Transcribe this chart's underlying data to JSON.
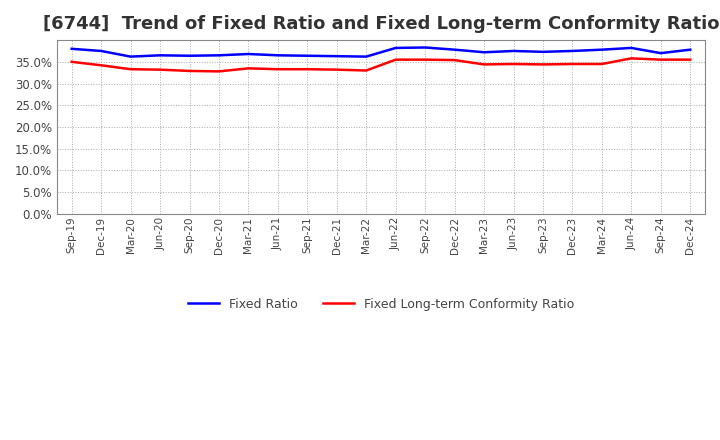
{
  "title": "[6744]  Trend of Fixed Ratio and Fixed Long-term Conformity Ratio",
  "x_labels": [
    "Sep-19",
    "Dec-19",
    "Mar-20",
    "Jun-20",
    "Sep-20",
    "Dec-20",
    "Mar-21",
    "Jun-21",
    "Sep-21",
    "Dec-21",
    "Mar-22",
    "Jun-22",
    "Sep-22",
    "Dec-22",
    "Mar-23",
    "Jun-23",
    "Sep-23",
    "Dec-23",
    "Mar-24",
    "Jun-24",
    "Sep-24",
    "Dec-24"
  ],
  "fixed_ratio": [
    38.0,
    37.5,
    36.2,
    36.5,
    36.4,
    36.5,
    36.8,
    36.5,
    36.4,
    36.3,
    36.2,
    38.2,
    38.3,
    37.8,
    37.2,
    37.5,
    37.3,
    37.5,
    37.8,
    38.2,
    37.0,
    37.8
  ],
  "fixed_lt_ratio": [
    35.0,
    34.2,
    33.3,
    33.2,
    32.9,
    32.8,
    33.5,
    33.3,
    33.3,
    33.2,
    33.0,
    35.5,
    35.5,
    35.4,
    34.4,
    34.5,
    34.4,
    34.5,
    34.5,
    35.8,
    35.5,
    35.5
  ],
  "ylim": [
    0,
    40
  ],
  "yticks": [
    0,
    5,
    10,
    15,
    20,
    25,
    30,
    35
  ],
  "fixed_ratio_color": "#0000ff",
  "fixed_lt_ratio_color": "#ff0000",
  "background_color": "#ffffff",
  "grid_color": "#aaaaaa",
  "title_fontsize": 13,
  "legend_fixed_ratio": "Fixed Ratio",
  "legend_fixed_lt_ratio": "Fixed Long-term Conformity Ratio"
}
